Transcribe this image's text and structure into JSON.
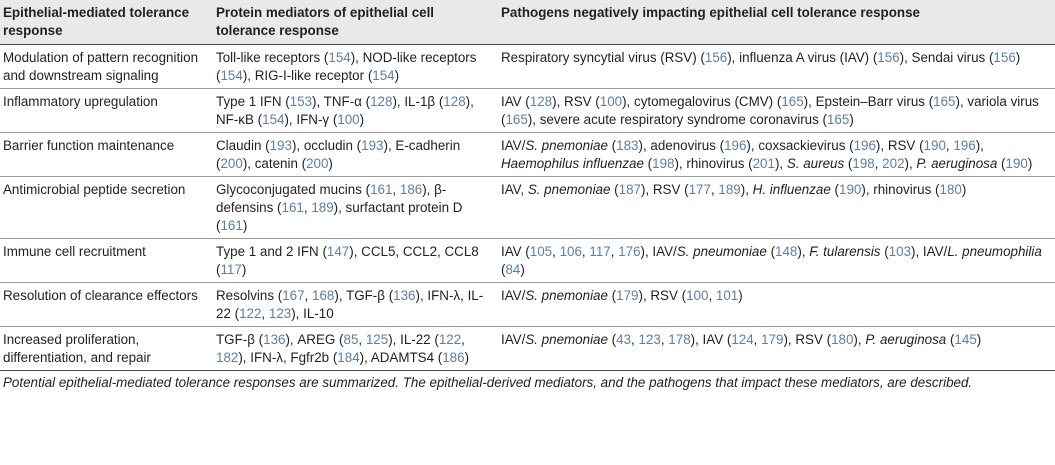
{
  "headers": [
    "Epithelial-mediated tolerance response",
    "Protein mediators of epithelial cell tolerance response",
    "Pathogens negatively impacting epithelial cell tolerance response"
  ],
  "rows": [
    {
      "response": "Modulation of pattern recognition and downstream signaling",
      "mediators": [
        {
          "t": "Toll-like receptors ("
        },
        {
          "t": "154",
          "ref": true
        },
        {
          "t": "), NOD-like receptors ("
        },
        {
          "t": "154",
          "ref": true
        },
        {
          "t": "), RIG-I-like receptor ("
        },
        {
          "t": "154",
          "ref": true
        },
        {
          "t": ")"
        }
      ],
      "pathogens": [
        {
          "t": "Respiratory syncytial virus (RSV) ("
        },
        {
          "t": "156",
          "ref": true
        },
        {
          "t": "), influenza A virus (IAV) ("
        },
        {
          "t": "156",
          "ref": true
        },
        {
          "t": "), Sendai virus ("
        },
        {
          "t": "156",
          "ref": true
        },
        {
          "t": ")"
        }
      ]
    },
    {
      "response": "Inflammatory upregulation",
      "mediators": [
        {
          "t": "Type 1 IFN ("
        },
        {
          "t": "153",
          "ref": true
        },
        {
          "t": "), TNF-α ("
        },
        {
          "t": "128",
          "ref": true
        },
        {
          "t": "), IL-1β ("
        },
        {
          "t": "128",
          "ref": true
        },
        {
          "t": "), NF-κB ("
        },
        {
          "t": "154",
          "ref": true
        },
        {
          "t": "), IFN-γ ("
        },
        {
          "t": "100",
          "ref": true
        },
        {
          "t": ")"
        }
      ],
      "pathogens": [
        {
          "t": "IAV ("
        },
        {
          "t": "128",
          "ref": true
        },
        {
          "t": "), RSV ("
        },
        {
          "t": "100",
          "ref": true
        },
        {
          "t": "), cytomegalovirus (CMV) ("
        },
        {
          "t": "165",
          "ref": true
        },
        {
          "t": "), Epstein–Barr virus ("
        },
        {
          "t": "165",
          "ref": true
        },
        {
          "t": "), variola virus ("
        },
        {
          "t": "165",
          "ref": true
        },
        {
          "t": "), severe acute respiratory syndrome coronavirus ("
        },
        {
          "t": "165",
          "ref": true
        },
        {
          "t": ")"
        }
      ]
    },
    {
      "response": "Barrier function maintenance",
      "mediators": [
        {
          "t": "Claudin ("
        },
        {
          "t": "193",
          "ref": true
        },
        {
          "t": "), occludin ("
        },
        {
          "t": "193",
          "ref": true
        },
        {
          "t": "), E-cadherin ("
        },
        {
          "t": "200",
          "ref": true
        },
        {
          "t": "), catenin ("
        },
        {
          "t": "200",
          "ref": true
        },
        {
          "t": ")"
        }
      ],
      "pathogens": [
        {
          "t": "IAV/"
        },
        {
          "t": "S. pnemoniae",
          "it": true
        },
        {
          "t": " ("
        },
        {
          "t": "183",
          "ref": true
        },
        {
          "t": "), adenovirus ("
        },
        {
          "t": "196",
          "ref": true
        },
        {
          "t": "), coxsackievirus ("
        },
        {
          "t": "196",
          "ref": true
        },
        {
          "t": "), RSV ("
        },
        {
          "t": "190",
          "ref": true
        },
        {
          "t": ", "
        },
        {
          "t": "196",
          "ref": true
        },
        {
          "t": "), "
        },
        {
          "t": "Haemophilus influenzae",
          "it": true
        },
        {
          "t": " ("
        },
        {
          "t": "198",
          "ref": true
        },
        {
          "t": "), rhinovirus ("
        },
        {
          "t": "201",
          "ref": true
        },
        {
          "t": "), "
        },
        {
          "t": "S. aureus",
          "it": true
        },
        {
          "t": " ("
        },
        {
          "t": "198",
          "ref": true
        },
        {
          "t": ", "
        },
        {
          "t": "202",
          "ref": true
        },
        {
          "t": "), "
        },
        {
          "t": "P. aeruginosa",
          "it": true
        },
        {
          "t": " ("
        },
        {
          "t": "190",
          "ref": true
        },
        {
          "t": ")"
        }
      ]
    },
    {
      "response": "Antimicrobial peptide secretion",
      "mediators": [
        {
          "t": "Glycoconjugated mucins ("
        },
        {
          "t": "161",
          "ref": true
        },
        {
          "t": ", "
        },
        {
          "t": "186",
          "ref": true
        },
        {
          "t": "), β-defensins ("
        },
        {
          "t": "161",
          "ref": true
        },
        {
          "t": ", "
        },
        {
          "t": "189",
          "ref": true
        },
        {
          "t": "), surfactant protein D ("
        },
        {
          "t": "161",
          "ref": true
        },
        {
          "t": ")"
        }
      ],
      "pathogens": [
        {
          "t": "IAV, "
        },
        {
          "t": "S. pnemoniae",
          "it": true
        },
        {
          "t": " ("
        },
        {
          "t": "187",
          "ref": true
        },
        {
          "t": "), RSV ("
        },
        {
          "t": "177",
          "ref": true
        },
        {
          "t": ", "
        },
        {
          "t": "189",
          "ref": true
        },
        {
          "t": "), "
        },
        {
          "t": "H. influenzae",
          "it": true
        },
        {
          "t": " ("
        },
        {
          "t": "190",
          "ref": true
        },
        {
          "t": "), rhinovirus ("
        },
        {
          "t": "180",
          "ref": true
        },
        {
          "t": ")"
        }
      ]
    },
    {
      "response": "Immune cell recruitment",
      "mediators": [
        {
          "t": "Type 1 and 2 IFN ("
        },
        {
          "t": "147",
          "ref": true
        },
        {
          "t": "), CCL5, CCL2, CCL8 ("
        },
        {
          "t": "117",
          "ref": true
        },
        {
          "t": ")"
        }
      ],
      "pathogens": [
        {
          "t": "IAV ("
        },
        {
          "t": "105",
          "ref": true
        },
        {
          "t": ", "
        },
        {
          "t": "106",
          "ref": true
        },
        {
          "t": ", "
        },
        {
          "t": "117",
          "ref": true
        },
        {
          "t": ", "
        },
        {
          "t": "176",
          "ref": true
        },
        {
          "t": "), IAV/"
        },
        {
          "t": "S. pneumoniae",
          "it": true
        },
        {
          "t": " ("
        },
        {
          "t": "148",
          "ref": true
        },
        {
          "t": "), "
        },
        {
          "t": "F. tularensis",
          "it": true
        },
        {
          "t": " ("
        },
        {
          "t": "103",
          "ref": true
        },
        {
          "t": "), IAV/"
        },
        {
          "t": "L. pneumophilia",
          "it": true
        },
        {
          "t": " ("
        },
        {
          "t": "84",
          "ref": true
        },
        {
          "t": ")"
        }
      ]
    },
    {
      "response": "Resolution of clearance effectors",
      "mediators": [
        {
          "t": "Resolvins ("
        },
        {
          "t": "167",
          "ref": true
        },
        {
          "t": ", "
        },
        {
          "t": "168",
          "ref": true
        },
        {
          "t": "), TGF-β ("
        },
        {
          "t": "136",
          "ref": true
        },
        {
          "t": "), IFN-λ, IL-22 ("
        },
        {
          "t": "122",
          "ref": true
        },
        {
          "t": ", "
        },
        {
          "t": "123",
          "ref": true
        },
        {
          "t": "), IL-10"
        }
      ],
      "pathogens": [
        {
          "t": "IAV/"
        },
        {
          "t": "S. pnemoniae",
          "it": true
        },
        {
          "t": " ("
        },
        {
          "t": "179",
          "ref": true
        },
        {
          "t": "), RSV ("
        },
        {
          "t": "100",
          "ref": true
        },
        {
          "t": ", "
        },
        {
          "t": "101",
          "ref": true
        },
        {
          "t": ")"
        }
      ]
    },
    {
      "response": "Increased proliferation, differentiation, and repair",
      "mediators": [
        {
          "t": "TGF-β ("
        },
        {
          "t": "136",
          "ref": true
        },
        {
          "t": "), AREG ("
        },
        {
          "t": "85",
          "ref": true
        },
        {
          "t": ", "
        },
        {
          "t": "125",
          "ref": true
        },
        {
          "t": "), IL-22 ("
        },
        {
          "t": "122",
          "ref": true
        },
        {
          "t": ", "
        },
        {
          "t": "182",
          "ref": true
        },
        {
          "t": "), IFN-λ, Fgfr2b ("
        },
        {
          "t": "184",
          "ref": true
        },
        {
          "t": "), ADAMTS4 ("
        },
        {
          "t": "186",
          "ref": true
        },
        {
          "t": ")"
        }
      ],
      "pathogens": [
        {
          "t": "IAV/"
        },
        {
          "t": "S. pnemoniae",
          "it": true
        },
        {
          "t": " ("
        },
        {
          "t": "43",
          "ref": true
        },
        {
          "t": ", "
        },
        {
          "t": "123",
          "ref": true
        },
        {
          "t": ", "
        },
        {
          "t": "178",
          "ref": true
        },
        {
          "t": "), IAV ("
        },
        {
          "t": "124",
          "ref": true
        },
        {
          "t": ", "
        },
        {
          "t": "179",
          "ref": true
        },
        {
          "t": "), RSV ("
        },
        {
          "t": "180",
          "ref": true
        },
        {
          "t": "), "
        },
        {
          "t": "P. aeruginosa",
          "it": true
        },
        {
          "t": " ("
        },
        {
          "t": "145",
          "ref": true
        },
        {
          "t": ")"
        }
      ]
    }
  ],
  "caption": "Potential epithelial-mediated tolerance responses are summarized. The epithelial-derived mediators, and the pathogens that impact these mediators, are described.",
  "colors": {
    "header_bg": "#e8e9ea",
    "ref_link": "#5b7fa8",
    "text": "#231f20"
  }
}
